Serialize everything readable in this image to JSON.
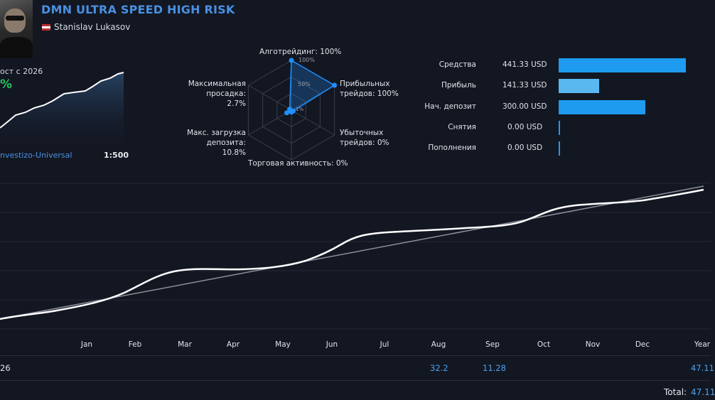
{
  "header": {
    "title": "DMN ULTRA SPEED HIGH RISK",
    "author": "Stanislav Lukasov"
  },
  "growth": {
    "label": "ост с 2026",
    "value": "%",
    "broker": "nvestizo-Universal",
    "leverage": "1:500"
  },
  "radar": {
    "algo": "Алготрейдинг: 100%",
    "profit_trades_l1": "Прибыльных",
    "profit_trades_l2": "трейдов: 100%",
    "loss_trades_l1": "Убыточных",
    "loss_trades_l2": "трейдов: 0%",
    "activity": "Торговая активность: 0%",
    "load_l1": "Макс. загрузка",
    "load_l2": "депозита: 10.8%",
    "drawdown_l1": "Максимальная",
    "drawdown_l2": "просадка: 2.7%",
    "tick_100": "100%",
    "tick_50": "50%",
    "tick_1": "1%",
    "values": {
      "algo": 100,
      "profit_trades": 100,
      "loss_trades": 0,
      "activity": 0,
      "load": 10.8,
      "drawdown": 2.7
    }
  },
  "summary": {
    "items": [
      {
        "label": "Средства",
        "value": "441.33 USD",
        "amount": 441.33,
        "color": "#1e9bef"
      },
      {
        "label": "Прибыль",
        "value": "141.33 USD",
        "amount": 141.33,
        "color": "#5ab8f0"
      },
      {
        "label": "Нач. депозит",
        "value": "300.00 USD",
        "amount": 300.0,
        "color": "#1e9bef"
      },
      {
        "label": "Снятия",
        "value": "0.00 USD",
        "amount": 0,
        "color": "#1e9bef"
      },
      {
        "label": "Пополнения",
        "value": "0.00 USD",
        "amount": 0,
        "color": "#1e9bef"
      }
    ]
  },
  "chart": {
    "months": [
      "Jan",
      "Feb",
      "Mar",
      "Apr",
      "May",
      "Jun",
      "Jul",
      "Aug",
      "Sep",
      "Oct",
      "Nov",
      "Dec",
      "Year"
    ]
  },
  "yearly": {
    "year": "26",
    "aug": "32.2",
    "sep": "11.28",
    "year_total": "47.11",
    "total_label": "Total:",
    "total_value": "47.11"
  }
}
